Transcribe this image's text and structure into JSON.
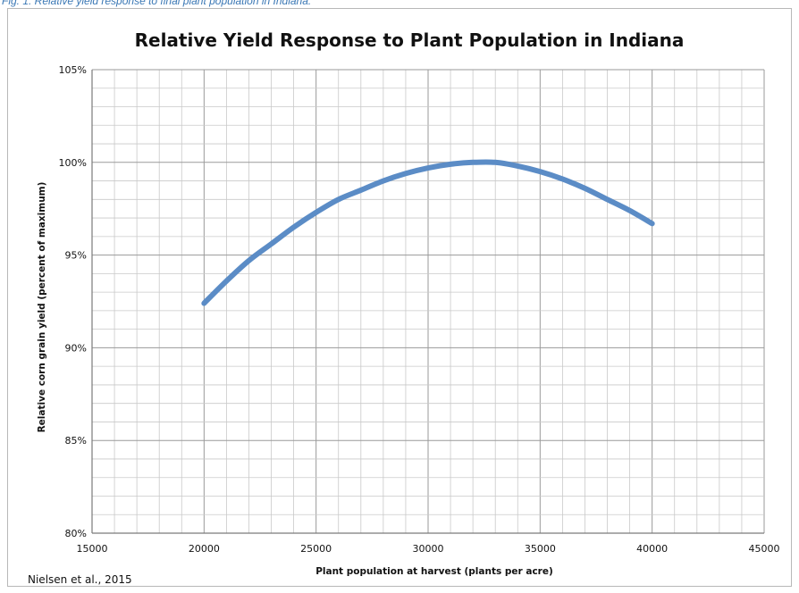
{
  "figure": {
    "caption": "Fig. 1. Relative yield response to final plant population in Indiana.",
    "source_note": "Nielsen et al., 2015"
  },
  "chart_data": {
    "type": "line",
    "title": "Relative Yield Response to Plant Population in Indiana",
    "xlabel": "Plant population at harvest (plants per acre)",
    "ylabel": "Relative corn grain yield (percent of maximum)",
    "xlim": [
      15000,
      45000
    ],
    "ylim": [
      80,
      105
    ],
    "x_major_ticks": [
      15000,
      20000,
      25000,
      30000,
      35000,
      40000,
      45000
    ],
    "x_tick_labels": [
      "15000",
      "20000",
      "25000",
      "30000",
      "35000",
      "40000",
      "45000"
    ],
    "y_major_ticks": [
      80,
      85,
      90,
      95,
      100,
      105
    ],
    "y_tick_labels": [
      "80%",
      "85%",
      "90%",
      "95%",
      "100%",
      "105%"
    ],
    "x_minor_step": 1000,
    "y_minor_step": 1,
    "grid": true,
    "legend": "none",
    "line_color": "#5b8cc6",
    "series": [
      {
        "x": [
          20000,
          21000,
          22000,
          23000,
          24000,
          25000,
          26000,
          27000,
          28000,
          29000,
          30000,
          31000,
          32000,
          33000,
          34000,
          35000,
          36000,
          37000,
          38000,
          39000,
          40000
        ],
        "values": [
          92.4,
          93.6,
          94.7,
          95.6,
          96.5,
          97.3,
          98.0,
          98.5,
          99.0,
          99.4,
          99.7,
          99.9,
          100.0,
          100.0,
          99.8,
          99.5,
          99.1,
          98.6,
          98.0,
          97.4,
          96.7
        ]
      }
    ]
  }
}
